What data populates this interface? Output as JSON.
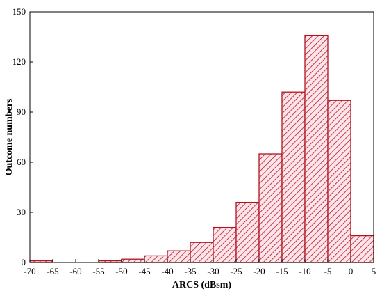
{
  "chart_data": {
    "type": "bar",
    "xlabel": "ARCS (dBsm)",
    "ylabel": "Outcome numbers",
    "xlim": [
      -70,
      5
    ],
    "ylim": [
      0,
      150
    ],
    "xticks": [
      -70,
      -65,
      -60,
      -55,
      -50,
      -45,
      -40,
      -35,
      -30,
      -25,
      -20,
      -15,
      -10,
      -5,
      0,
      5
    ],
    "yticks": [
      0,
      30,
      60,
      90,
      120,
      150
    ],
    "bin_width": 5,
    "bins": [
      {
        "start": -70,
        "end": -65,
        "value": 1
      },
      {
        "start": -65,
        "end": -60,
        "value": 0
      },
      {
        "start": -60,
        "end": -55,
        "value": 0
      },
      {
        "start": -55,
        "end": -50,
        "value": 1
      },
      {
        "start": -50,
        "end": -45,
        "value": 2
      },
      {
        "start": -45,
        "end": -40,
        "value": 4
      },
      {
        "start": -40,
        "end": -35,
        "value": 7
      },
      {
        "start": -35,
        "end": -30,
        "value": 12
      },
      {
        "start": -30,
        "end": -25,
        "value": 21
      },
      {
        "start": -25,
        "end": -20,
        "value": 36
      },
      {
        "start": -20,
        "end": -15,
        "value": 65
      },
      {
        "start": -15,
        "end": -10,
        "value": 102
      },
      {
        "start": -10,
        "end": -5,
        "value": 136
      },
      {
        "start": -5,
        "end": 0,
        "value": 97
      },
      {
        "start": 0,
        "end": 5,
        "value": 16
      }
    ],
    "grid": false,
    "colors": {
      "bar_stroke": "#b0141e",
      "bar_hatch": "#b0141e",
      "bar_fill": "#fde4ea"
    }
  }
}
